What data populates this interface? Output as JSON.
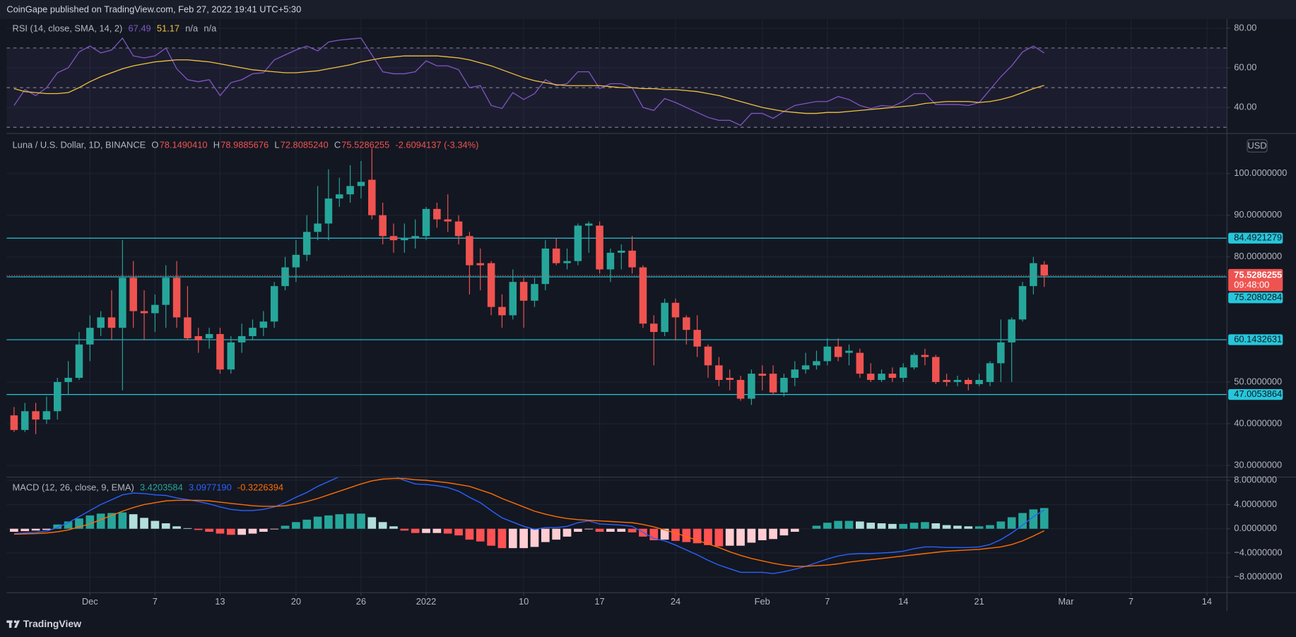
{
  "header": {
    "publisher": "CoinGape published on TradingView.com, Feb 27, 2022 19:41 UTC+5:30"
  },
  "footer": {
    "brand": "TradingView"
  },
  "chart_data": [
    {
      "type": "line",
      "title": "RSI (14, close, SMA, 14, 2)",
      "legend_values": [
        "67.49",
        "51.17",
        "n/a",
        "n/a"
      ],
      "legend_colors": [
        "#7e57c2",
        "#f0c33c",
        "#b2b5be",
        "#b2b5be"
      ],
      "levels": [
        70,
        50,
        30
      ],
      "band_color": "#7e57c2",
      "ylim": [
        27.5,
        84.6
      ],
      "yticks": [
        {
          "value": 40,
          "label": "40.00"
        },
        {
          "value": 60,
          "label": "60.00"
        },
        {
          "value": 80,
          "label": "80.00"
        }
      ],
      "series": [
        {
          "color": "#7e57c2",
          "values": [
            41,
            49,
            46,
            50,
            57.5,
            60,
            68,
            71,
            67.5,
            69,
            75,
            66,
            65,
            66,
            70,
            59.5,
            54,
            53,
            54,
            46,
            52.5,
            54,
            57,
            57.5,
            64,
            66.5,
            69,
            71,
            68.5,
            73,
            74,
            74.5,
            75,
            66.5,
            58,
            57,
            57,
            58,
            63.5,
            61,
            61,
            59,
            50,
            51,
            41,
            39.5,
            47.5,
            44,
            47,
            54,
            51,
            52,
            58,
            58,
            49.5,
            52,
            52,
            50,
            40,
            38.5,
            44.5,
            42.5,
            40,
            37.5,
            35,
            33.5,
            33.5,
            31,
            37,
            37,
            34.5,
            38,
            41,
            42,
            43,
            43,
            45.5,
            44,
            41,
            39.5,
            41,
            40.5,
            43,
            47,
            47,
            41.5,
            41.5,
            41.5,
            41,
            42.5,
            49,
            55.5,
            61,
            68,
            71,
            67.49,
            null,
            null,
            null,
            null,
            null,
            null,
            null,
            null,
            null,
            null,
            null,
            null,
            null,
            null,
            null
          ]
        },
        {
          "color": "#f0c33c",
          "values": [
            49.5,
            48,
            47.5,
            47,
            47,
            47.5,
            50,
            53,
            55.5,
            57.5,
            59.5,
            61,
            62,
            63,
            63.5,
            64,
            64,
            63.5,
            63,
            62,
            61,
            60,
            59,
            58.5,
            58,
            57.5,
            57.5,
            58,
            58.5,
            59.5,
            60.5,
            61.5,
            63,
            64,
            65,
            65.5,
            66,
            66,
            66,
            66,
            65.5,
            65,
            64,
            62.5,
            61,
            59,
            57,
            55,
            53.5,
            52.5,
            51.5,
            51,
            51,
            51,
            51,
            50.5,
            50,
            50,
            49.5,
            49.5,
            49,
            49,
            48.5,
            48,
            47,
            46,
            44.5,
            43,
            41.5,
            40,
            39,
            38,
            37.5,
            37,
            37,
            37.5,
            37.5,
            38,
            38.5,
            39,
            39.5,
            40,
            40.5,
            41,
            42,
            42.5,
            43,
            43,
            43,
            42.5,
            43,
            44,
            45.5,
            47.5,
            49.5,
            51.17,
            null,
            null,
            null,
            null,
            null,
            null,
            null,
            null,
            null,
            null,
            null,
            null,
            null,
            null,
            null
          ]
        }
      ]
    },
    {
      "type": "candlestick",
      "title": "Luna / U.S. Dollar, 1D, BINANCE",
      "ohlc": [
        {
          "label": "O",
          "value": "78.1490410"
        },
        {
          "label": "H",
          "value": "78.9885676"
        },
        {
          "label": "L",
          "value": "72.8085240"
        },
        {
          "label": "C",
          "value": "75.5286255"
        }
      ],
      "change": "-2.6094137 (-3.34%)",
      "currency": "USD",
      "countdown": "09:48:00",
      "up_color": "#26a69a",
      "down_color": "#ef5350",
      "level_color": "#26c6da",
      "levels": [
        84.4921279,
        75.2080284,
        60.1432631,
        47.0053864
      ],
      "ylim": [
        27.3,
        109.3
      ],
      "yticks": [
        {
          "value": 30,
          "label": "30.0000000"
        },
        {
          "value": 40,
          "label": "40.0000000"
        },
        {
          "value": 50,
          "label": "50.0000000"
        },
        {
          "value": 80,
          "label": "80.0000000"
        },
        {
          "value": 90,
          "label": "90.0000000"
        },
        {
          "value": 100,
          "label": "100.0000000"
        }
      ],
      "categories": [
        null,
        null,
        null,
        null,
        null,
        null,
        null,
        "Dec",
        null,
        null,
        null,
        null,
        null,
        "7",
        null,
        null,
        null,
        null,
        null,
        "13",
        null,
        null,
        null,
        null,
        null,
        null,
        "20",
        null,
        null,
        null,
        null,
        null,
        "26",
        null,
        null,
        null,
        null,
        null,
        "2022",
        null,
        null,
        null,
        null,
        null,
        null,
        null,
        null,
        "10",
        null,
        null,
        null,
        null,
        null,
        null,
        "17",
        null,
        null,
        null,
        null,
        null,
        null,
        "24",
        null,
        null,
        null,
        null,
        null,
        null,
        null,
        "Feb",
        null,
        null,
        null,
        null,
        null,
        "7",
        null,
        null,
        null,
        null,
        null,
        null,
        "14",
        null,
        null,
        null,
        null,
        null,
        null,
        "21",
        null,
        null,
        null,
        null,
        null,
        null,
        null,
        "Mar",
        null,
        null,
        null,
        null,
        null,
        "7",
        null,
        null,
        null,
        null,
        null,
        null,
        "14"
      ],
      "open": [
        42,
        38.5,
        43,
        41,
        43,
        50,
        51,
        59,
        63,
        65.5,
        63,
        75,
        67,
        66.5,
        68.5,
        75,
        65.5,
        61,
        60.5,
        61.5,
        53,
        59.5,
        61,
        63,
        64.5,
        73,
        77.5,
        80.5,
        86,
        88,
        94,
        95,
        97,
        98.5,
        90,
        85,
        84,
        84.5,
        85,
        91.5,
        89,
        88.5,
        85,
        78.5,
        78.5,
        68,
        66,
        74,
        69.5,
        73.5,
        82,
        78.5,
        79,
        87.5,
        87.5,
        77,
        81,
        81.5,
        77.5,
        64,
        62,
        69,
        65.5,
        62.5,
        58.5,
        54,
        51,
        50.5,
        46,
        52,
        52,
        47.5,
        51,
        53,
        54,
        55,
        58.5,
        57,
        57,
        52,
        50.5,
        52,
        51,
        53.5,
        56.5,
        56,
        50.5,
        50,
        50.5,
        49.5,
        50,
        54.5,
        59.5,
        65,
        73,
        78.149041,
        null,
        null,
        null,
        null,
        null,
        null,
        null,
        null,
        null,
        null,
        null,
        null,
        null,
        null,
        null
      ],
      "high": [
        44,
        45,
        45,
        46.5,
        51,
        55,
        62,
        66,
        67,
        72,
        84,
        79,
        72,
        71,
        78,
        79,
        73,
        63,
        63,
        63,
        61,
        64,
        65,
        67,
        74,
        80,
        84,
        90,
        97,
        101,
        99,
        102,
        103,
        106,
        93,
        88,
        88,
        89,
        92,
        93,
        95,
        90,
        86,
        82,
        79,
        71,
        77,
        75,
        75,
        84,
        84.5,
        82,
        88,
        88.5,
        88.5,
        82,
        83,
        85,
        78,
        66,
        70,
        70,
        66,
        66,
        59,
        56,
        53,
        51.5,
        53,
        54,
        54,
        52,
        55,
        57,
        57.5,
        60.5,
        60.5,
        59,
        58,
        54.5,
        53,
        53.5,
        54.5,
        57,
        58,
        56.5,
        52,
        51.5,
        51,
        52,
        55,
        65,
        65.5,
        74,
        80,
        78.9885676,
        null,
        null,
        null,
        null,
        null,
        null,
        null,
        null,
        null,
        null,
        null,
        null,
        null,
        null,
        null
      ],
      "low": [
        38,
        38,
        37.5,
        40,
        41,
        47,
        50.5,
        55,
        61,
        60,
        48,
        63,
        60,
        62,
        63,
        63,
        60,
        57,
        58,
        52,
        52,
        57,
        60,
        61,
        63,
        72,
        74,
        79,
        84,
        84,
        92,
        93,
        94,
        89,
        83,
        81,
        81,
        82,
        84,
        87,
        86,
        83,
        71,
        72,
        66,
        63,
        65,
        63,
        68,
        72,
        78,
        77,
        78,
        81,
        76,
        74,
        77,
        76,
        63,
        54,
        61,
        60,
        59,
        56,
        51,
        49,
        48,
        45.5,
        44.5,
        48,
        47,
        46.5,
        49,
        52,
        53,
        54,
        55,
        54,
        51,
        50,
        50,
        50,
        50,
        53,
        54,
        49.5,
        49,
        49,
        48,
        49,
        49,
        50,
        50,
        64.5,
        71,
        72.808524,
        null,
        null,
        null,
        null,
        null,
        null,
        null,
        null,
        null,
        null,
        null,
        null,
        null,
        null,
        null
      ],
      "close": [
        38.5,
        43,
        41,
        43,
        50,
        51,
        59,
        63,
        65.5,
        63,
        75,
        67,
        66.5,
        68.5,
        75,
        65.5,
        60.5,
        60,
        61.5,
        53,
        59.5,
        61,
        63,
        64.5,
        73,
        77.5,
        80.5,
        86,
        88,
        94,
        95,
        97,
        98,
        90,
        85,
        84,
        84.5,
        85,
        91.5,
        89,
        88.5,
        85,
        78,
        78,
        68,
        66,
        74,
        69.5,
        73.5,
        82,
        78.5,
        79,
        87.5,
        88,
        77,
        81,
        81.5,
        77.5,
        64,
        62,
        69,
        65.5,
        62.5,
        58.5,
        54,
        50.5,
        50.5,
        46,
        52,
        51.5,
        47.5,
        51,
        53,
        54,
        55,
        58.5,
        56,
        57.5,
        52,
        50.5,
        52,
        51,
        53.5,
        56.5,
        56,
        50,
        50,
        50.5,
        49.5,
        50.5,
        54.5,
        59.5,
        65,
        73,
        78.5,
        75.5286255,
        null,
        null,
        null,
        null,
        null,
        null,
        null,
        null,
        null,
        null,
        null,
        null,
        null,
        null,
        null
      ]
    },
    {
      "type": "macd",
      "title": "MACD (12, 26, close, 9, EMA)",
      "legend_values": [
        "3.4203584",
        "3.0977190",
        "-0.3226394"
      ],
      "legend_colors": [
        "#26a69a",
        "#2962ff",
        "#ff6d00"
      ],
      "histogram_colors": [
        "#26a69a",
        "#b2dfdb",
        "#ffcdd2",
        "#ff5252"
      ],
      "ylim": [
        -10.5,
        8.6
      ],
      "yticks": [
        {
          "value": -8,
          "label": "−8.0000000"
        },
        {
          "value": -4,
          "label": "−4.0000000"
        },
        {
          "value": 0,
          "label": "0.0000000"
        },
        {
          "value": 4,
          "label": "4.0000000"
        },
        {
          "value": 8,
          "label": "8.0000000"
        }
      ],
      "histogram": [
        -0.5,
        -0.4,
        -0.3,
        -0.2,
        0.7,
        1.2,
        1.7,
        2.2,
        2.5,
        2.6,
        2.7,
        2.4,
        1.8,
        1.3,
        0.9,
        0.4,
        0.1,
        -0.2,
        -0.5,
        -0.8,
        -1.0,
        -1.0,
        -0.8,
        -0.5,
        -0.1,
        0.5,
        1.1,
        1.5,
        2.0,
        2.2,
        2.4,
        2.5,
        2.5,
        1.9,
        1.1,
        0.4,
        -0.3,
        -0.7,
        -0.7,
        -0.7,
        -0.8,
        -1.1,
        -1.8,
        -2.1,
        -2.8,
        -3.2,
        -3.2,
        -3.2,
        -3.0,
        -2.2,
        -1.8,
        -1.3,
        -0.5,
        -0.1,
        -0.5,
        -0.5,
        -0.5,
        -0.6,
        -1.3,
        -1.9,
        -1.8,
        -2.0,
        -2.2,
        -2.4,
        -2.7,
        -2.9,
        -2.8,
        -2.8,
        -2.3,
        -1.9,
        -1.7,
        -1.1,
        -0.5,
        0.0,
        0.5,
        1.0,
        1.3,
        1.3,
        1.2,
        1.0,
        0.9,
        0.8,
        0.8,
        1.0,
        1.1,
        0.9,
        0.6,
        0.5,
        0.4,
        0.4,
        0.6,
        1.2,
        1.9,
        2.6,
        3.2,
        3.4203584,
        null,
        null,
        null,
        null,
        null,
        null,
        null,
        null,
        null,
        null,
        null,
        null,
        null,
        null,
        null
      ],
      "series": [
        {
          "color": "#2962ff",
          "values": [
            -0.8,
            -0.7,
            -0.6,
            -0.4,
            0.2,
            1.0,
            2.0,
            3.0,
            4.0,
            4.8,
            5.6,
            5.9,
            5.8,
            5.6,
            5.5,
            5.1,
            4.8,
            4.5,
            4.1,
            3.6,
            3.2,
            3.0,
            3.0,
            3.2,
            3.6,
            4.3,
            5.2,
            6.0,
            7.0,
            7.8,
            8.6,
            9.3,
            9.9,
            9.8,
            9.3,
            8.7,
            8.0,
            7.4,
            7.3,
            7.1,
            6.8,
            6.2,
            5.2,
            4.3,
            3.0,
            1.8,
            1.1,
            0.4,
            -0.1,
            0.2,
            0.2,
            0.4,
            1.0,
            1.3,
            0.8,
            0.7,
            0.6,
            0.4,
            -0.6,
            -1.6,
            -2.0,
            -2.7,
            -3.5,
            -4.3,
            -5.2,
            -6.0,
            -6.6,
            -7.2,
            -7.2,
            -7.2,
            -7.4,
            -7.1,
            -6.7,
            -6.2,
            -5.6,
            -5.0,
            -4.5,
            -4.2,
            -4.1,
            -4.1,
            -4.0,
            -3.9,
            -3.7,
            -3.3,
            -3.0,
            -3.0,
            -3.1,
            -3.1,
            -3.1,
            -3.0,
            -2.6,
            -1.8,
            -0.7,
            0.6,
            2.0,
            3.097719,
            null,
            null,
            null,
            null,
            null,
            null,
            null,
            null,
            null,
            null,
            null,
            null,
            null,
            null,
            null
          ]
        },
        {
          "color": "#ff6d00",
          "values": [
            -0.9,
            -0.85,
            -0.8,
            -0.7,
            -0.5,
            -0.2,
            0.3,
            0.8,
            1.5,
            2.2,
            2.9,
            3.5,
            4.0,
            4.3,
            4.6,
            4.7,
            4.7,
            4.7,
            4.6,
            4.4,
            4.2,
            4.0,
            3.8,
            3.7,
            3.7,
            3.8,
            4.1,
            4.5,
            5.0,
            5.6,
            6.2,
            6.8,
            7.4,
            7.9,
            8.2,
            8.3,
            8.3,
            8.1,
            8.0,
            7.8,
            7.6,
            7.3,
            7.0,
            6.4,
            5.8,
            5.0,
            4.3,
            3.6,
            2.9,
            2.4,
            2.0,
            1.7,
            1.5,
            1.4,
            1.3,
            1.2,
            1.1,
            1.0,
            0.7,
            0.3,
            -0.2,
            -0.7,
            -1.3,
            -1.9,
            -2.5,
            -3.1,
            -3.8,
            -4.4,
            -4.9,
            -5.3,
            -5.7,
            -6.0,
            -6.2,
            -6.2,
            -6.1,
            -6.0,
            -5.8,
            -5.5,
            -5.3,
            -5.1,
            -4.9,
            -4.7,
            -4.5,
            -4.3,
            -4.1,
            -3.9,
            -3.7,
            -3.6,
            -3.5,
            -3.4,
            -3.2,
            -3.0,
            -2.6,
            -2.0,
            -1.2,
            -0.3226394,
            null,
            null,
            null,
            null,
            null,
            null,
            null,
            null,
            null,
            null,
            null,
            null,
            null,
            null,
            null
          ]
        }
      ]
    }
  ]
}
